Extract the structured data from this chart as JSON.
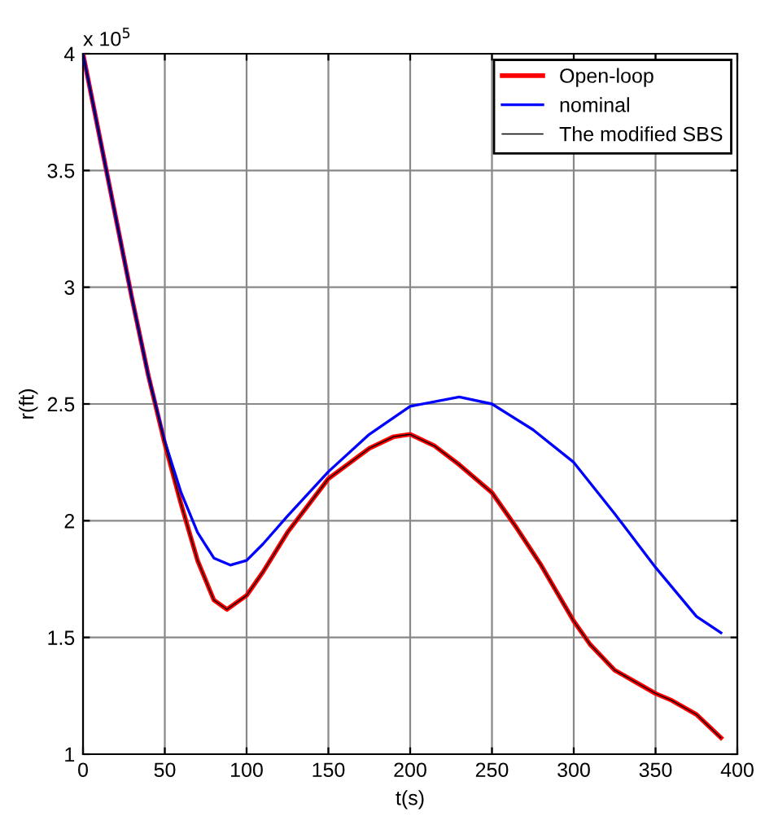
{
  "chart_data": {
    "type": "line",
    "xlabel": "t(s)",
    "ylabel": "r(ft)",
    "annotations": [
      "x 10$^{5}$"
    ],
    "xlim": [
      0,
      400
    ],
    "xticks": [
      0,
      50,
      100,
      150,
      200,
      250,
      300,
      350,
      400
    ],
    "ylim": [
      1,
      4
    ],
    "yticks": [
      1,
      1.5,
      2,
      2.5,
      3,
      3.5,
      4
    ],
    "grid": true,
    "legend": "top right",
    "line_style": "solid",
    "marker": "none",
    "series": [
      {
        "name": "Open-loop",
        "color": "#ff0000",
        "x": [
          0,
          10,
          20,
          30,
          40,
          50,
          60,
          70,
          80,
          88,
          100,
          110,
          125,
          150,
          175,
          190,
          200,
          215,
          230,
          250,
          265,
          280,
          300,
          310,
          325,
          340,
          350,
          360,
          375,
          390
        ],
        "values": [
          4.0,
          3.65,
          3.3,
          2.95,
          2.62,
          2.33,
          2.07,
          1.83,
          1.66,
          1.62,
          1.68,
          1.78,
          1.95,
          2.18,
          2.31,
          2.36,
          2.37,
          2.32,
          2.24,
          2.12,
          1.97,
          1.81,
          1.57,
          1.47,
          1.36,
          1.3,
          1.26,
          1.23,
          1.17,
          1.07
        ]
      },
      {
        "name": "nominal",
        "color": "#0000ff",
        "x": [
          0,
          10,
          20,
          30,
          40,
          50,
          60,
          70,
          80,
          90,
          100,
          110,
          125,
          150,
          175,
          200,
          230,
          250,
          275,
          300,
          325,
          350,
          375,
          390
        ],
        "values": [
          4.0,
          3.65,
          3.3,
          2.95,
          2.62,
          2.34,
          2.12,
          1.95,
          1.84,
          1.81,
          1.83,
          1.9,
          2.02,
          2.21,
          2.37,
          2.49,
          2.53,
          2.5,
          2.39,
          2.25,
          2.03,
          1.8,
          1.59,
          1.52
        ]
      },
      {
        "name": "The modified SBS",
        "color": "#000000",
        "x": [
          0,
          10,
          20,
          30,
          40,
          50,
          60,
          70,
          80,
          88,
          100,
          110,
          125,
          150,
          175,
          190,
          200,
          215,
          230,
          250,
          265,
          280,
          300,
          310,
          325,
          340,
          350,
          360,
          375,
          390
        ],
        "values": [
          4.0,
          3.65,
          3.3,
          2.95,
          2.62,
          2.33,
          2.07,
          1.83,
          1.66,
          1.62,
          1.68,
          1.78,
          1.95,
          2.18,
          2.31,
          2.36,
          2.37,
          2.32,
          2.24,
          2.12,
          1.97,
          1.81,
          1.57,
          1.47,
          1.36,
          1.3,
          1.26,
          1.23,
          1.17,
          1.07
        ]
      }
    ]
  }
}
